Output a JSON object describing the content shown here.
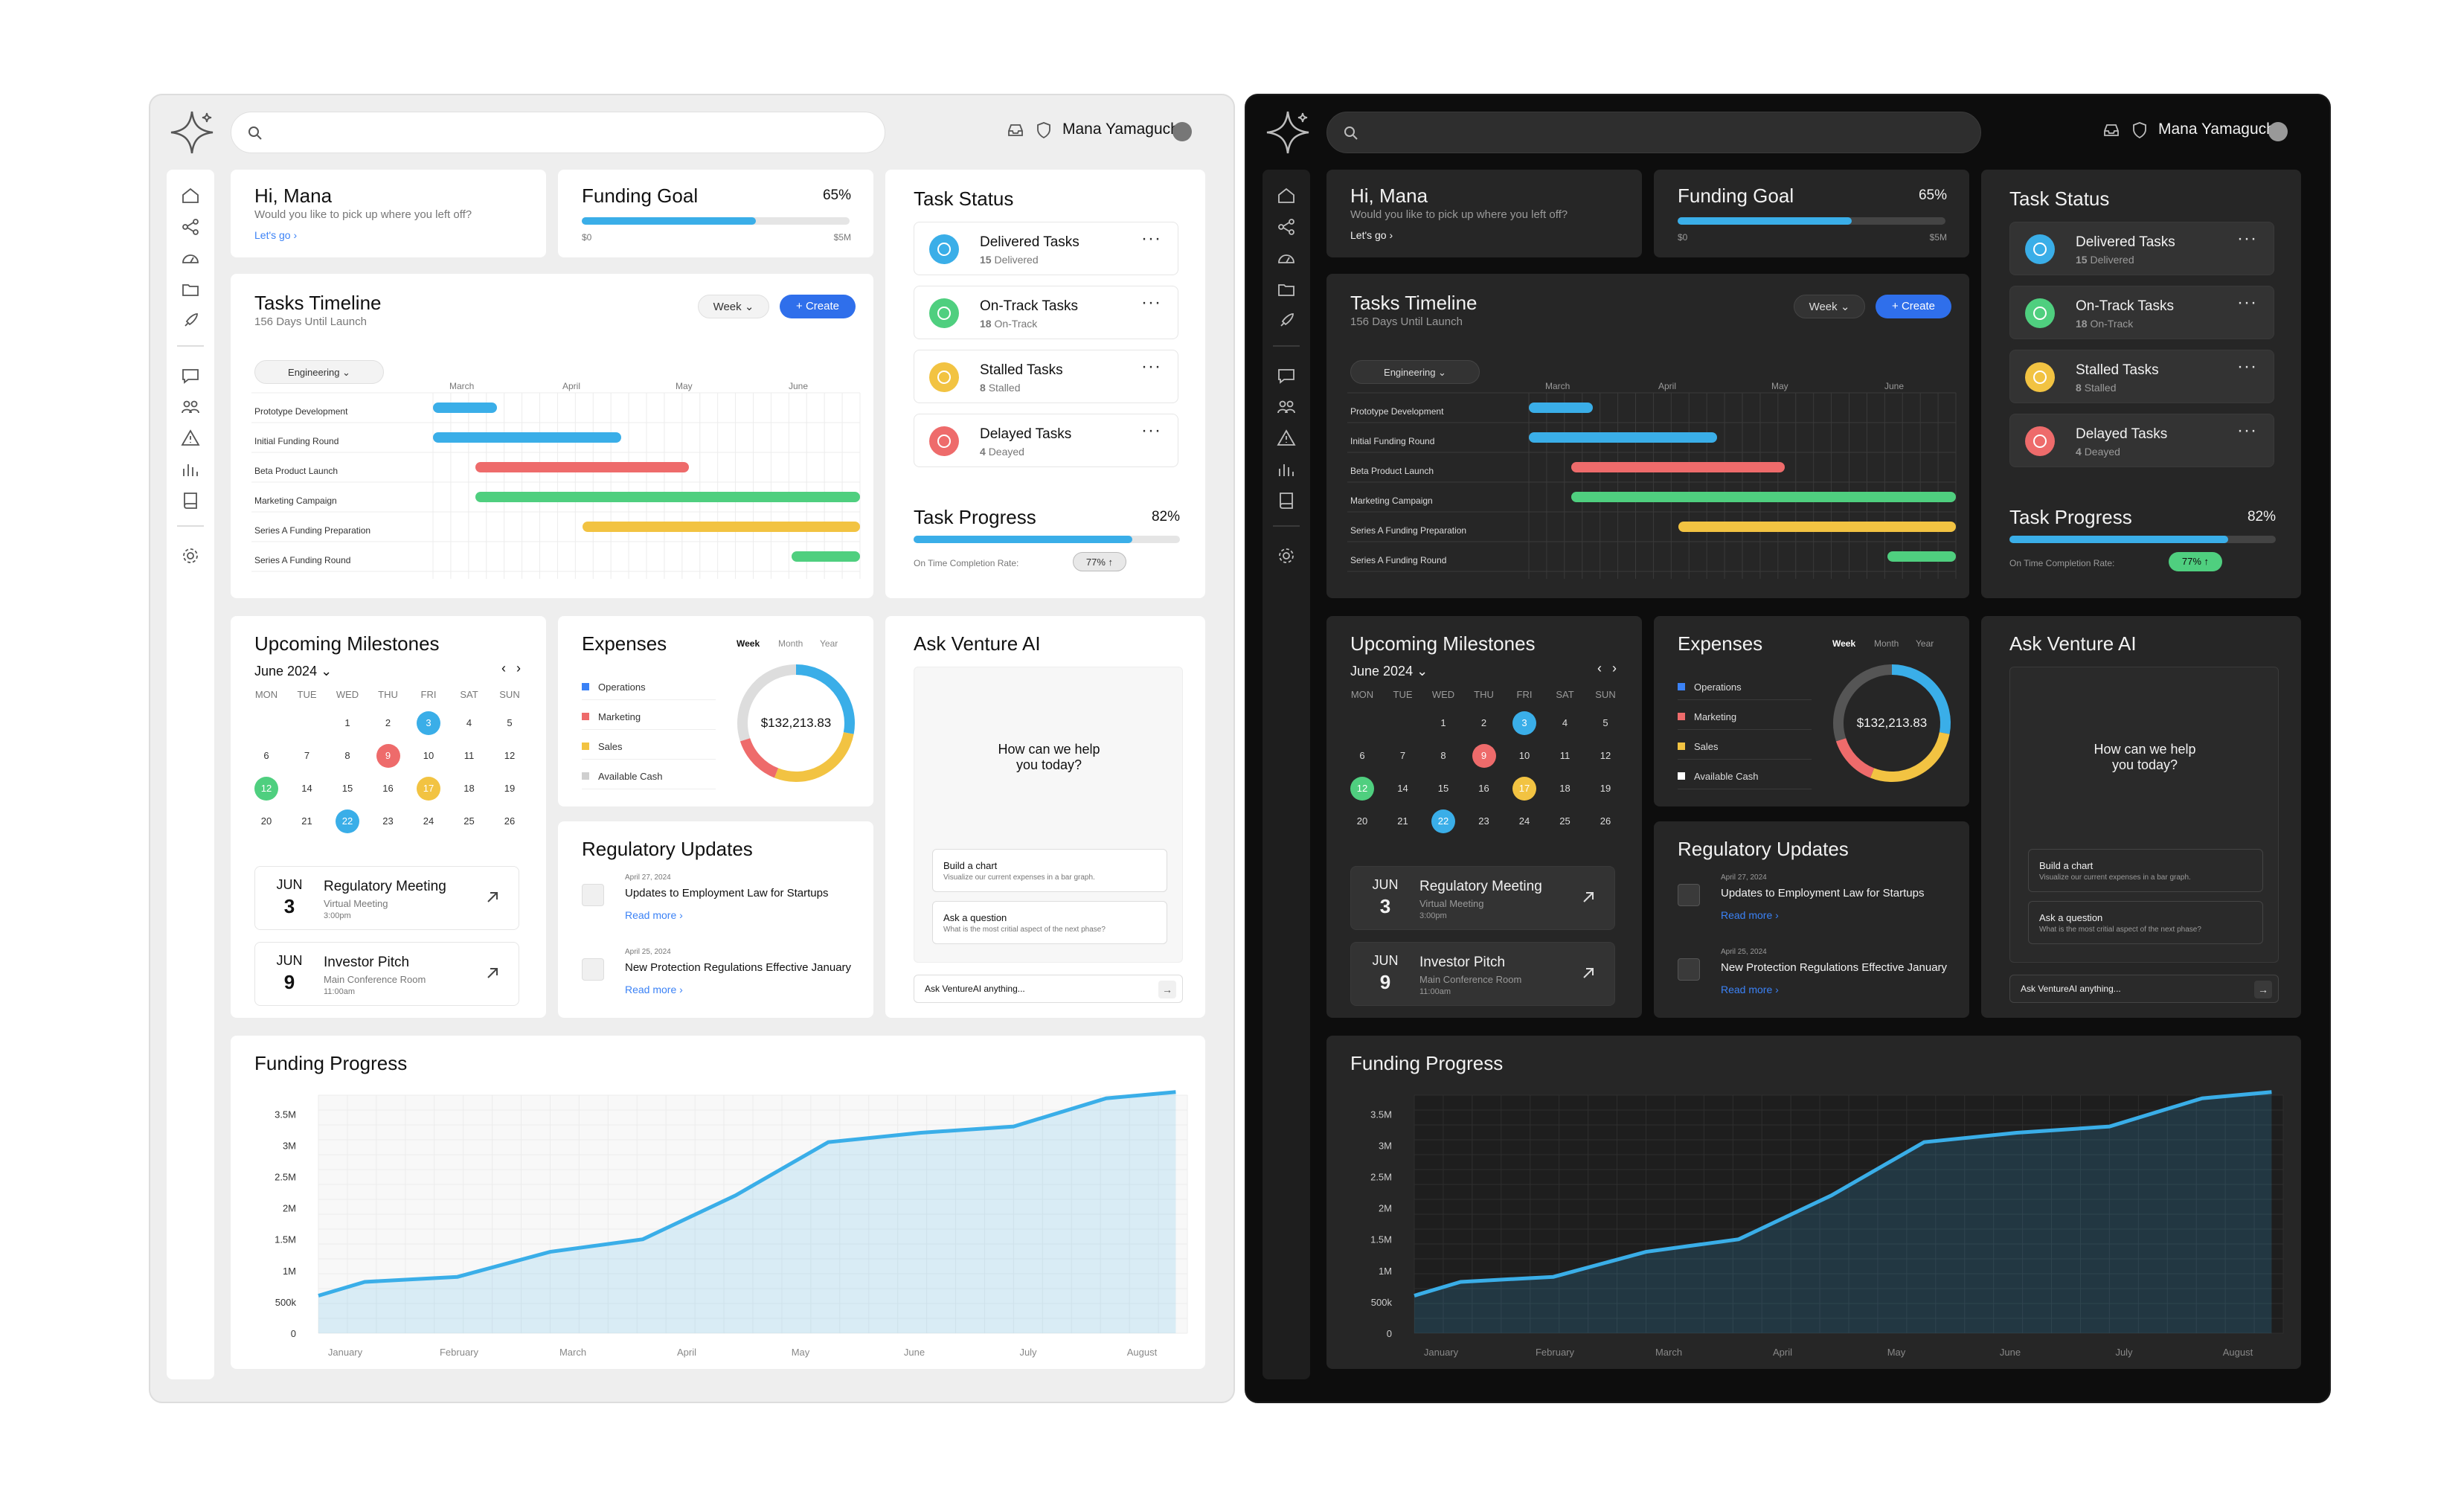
{
  "user": {
    "name": "Mana Yamaguchi"
  },
  "search": {
    "placeholder": ""
  },
  "colors": {
    "blue": "#3aaee8",
    "red": "#ee6b6b",
    "green": "#4fcf7f",
    "yellow": "#f2c342",
    "accent": "#2f6feb",
    "gray": "#cfcfcf"
  },
  "greeting": {
    "title": "Hi, Mana",
    "subtitle": "Would you like to pick up where you left off?",
    "link": "Let's go ›"
  },
  "funding_goal": {
    "title": "Funding Goal",
    "percent_label": "65%",
    "progress": 0.65,
    "min_label": "$0",
    "max_label": "$5M"
  },
  "task_status": {
    "title": "Task Status",
    "tasks": [
      {
        "title": "Delivered Tasks",
        "count": "15",
        "sub": "Delivered",
        "color": "#3aaee8",
        "icon": "check-circle-icon"
      },
      {
        "title": "On-Track Tasks",
        "count": "18",
        "sub": "On-Track",
        "color": "#4fcf7f",
        "icon": "signal-icon"
      },
      {
        "title": "Stalled Tasks",
        "count": "8",
        "sub": "Stalled",
        "color": "#f2c342",
        "icon": "pause-icon"
      },
      {
        "title": "Delayed Tasks",
        "count": "4",
        "sub": "Deayed",
        "color": "#ee6b6b",
        "icon": "warning-icon"
      }
    ],
    "menu": "···"
  },
  "task_progress": {
    "title": "Task Progress",
    "percent_label": "82%",
    "progress": 0.82,
    "rate_label": "On Time Completion Rate:",
    "rate_badge": "77% ↑"
  },
  "timeline": {
    "title": "Tasks Timeline",
    "subtitle": "156 Days Until Launch",
    "range_select": "Week",
    "create_button": "+ Create",
    "filter_select": "Engineering",
    "months": [
      "March",
      "April",
      "May",
      "June"
    ],
    "rows": [
      {
        "label": "Prototype Development",
        "start": 0.0,
        "end": 0.15,
        "color": "#3aaee8"
      },
      {
        "label": "Initial Funding Round",
        "start": 0.0,
        "end": 0.44,
        "color": "#3aaee8"
      },
      {
        "label": "Beta Product Launch",
        "start": 0.1,
        "end": 0.6,
        "color": "#ee6b6b"
      },
      {
        "label": "Marketing Campaign",
        "start": 0.1,
        "end": 1.0,
        "color": "#4fcf7f"
      },
      {
        "label": "Series A Funding Preparation",
        "start": 0.35,
        "end": 1.0,
        "color": "#f2c342"
      },
      {
        "label": "Series A Funding Round",
        "start": 0.84,
        "end": 1.0,
        "color": "#4fcf7f"
      }
    ]
  },
  "milestones": {
    "title": "Upcoming Milestones",
    "month": "June 2024",
    "weekdays": [
      "MON",
      "TUE",
      "WED",
      "THU",
      "FRI",
      "SAT",
      "SUN"
    ],
    "weeks": [
      [
        "",
        "",
        "1",
        "2",
        "3",
        "4",
        "5"
      ],
      [
        "6",
        "7",
        "8",
        "9",
        "10",
        "11",
        "12"
      ],
      [
        "12",
        "14",
        "15",
        "16",
        "17",
        "18",
        "19"
      ],
      [
        "20",
        "21",
        "22",
        "23",
        "24",
        "25",
        "26"
      ]
    ],
    "highlights": [
      {
        "week": 0,
        "day": 4,
        "color": "#3aaee8"
      },
      {
        "week": 1,
        "day": 3,
        "color": "#ee6b6b"
      },
      {
        "week": 2,
        "day": 0,
        "color": "#4fcf7f"
      },
      {
        "week": 2,
        "day": 4,
        "color": "#f2c342"
      },
      {
        "week": 3,
        "day": 2,
        "color": "#3aaee8"
      }
    ],
    "events": [
      {
        "month": "JUN",
        "day": "3",
        "title": "Regulatory Meeting",
        "sub": "Virtual Meeting",
        "time": "3:00pm"
      },
      {
        "month": "JUN",
        "day": "9",
        "title": "Investor Pitch",
        "sub": "Main Conference Room",
        "time": "11:00am"
      }
    ]
  },
  "expenses": {
    "title": "Expenses",
    "tabs": [
      "Week",
      "Month",
      "Year"
    ],
    "legend": [
      {
        "label": "Operations",
        "color": "#3b82f6"
      },
      {
        "label": "Marketing",
        "color": "#ee6b6b"
      },
      {
        "label": "Sales",
        "color": "#f2c342"
      },
      {
        "label": "Available Cash",
        "color": "#cfcfcf"
      }
    ],
    "total": "$132,213.83"
  },
  "regulatory": {
    "title": "Regulatory Updates",
    "items": [
      {
        "date": "April 27, 2024",
        "title": "Updates to Employment Law for Startups",
        "link": "Read more ›"
      },
      {
        "date": "April 25, 2024",
        "title": "New Protection Regulations Effective January",
        "link": "Read more ›"
      }
    ]
  },
  "ai": {
    "title": "Ask Venture AI",
    "prompt": "How can we help you today?",
    "suggestions": [
      {
        "title": "Build a chart",
        "sub": "Visualize our current expenses in a bar graph."
      },
      {
        "title": "Ask a question",
        "sub": "What is the most critial aspect of the next phase?"
      }
    ],
    "input_placeholder": "Ask VentureAI anything..."
  },
  "funding_progress": {
    "title": "Funding Progress"
  },
  "chart_data": {
    "type": "area",
    "title": "Funding Progress",
    "xlabel": "",
    "ylabel": "",
    "x_labels": [
      "January",
      "February",
      "March",
      "April",
      "May",
      "June",
      "July",
      "August"
    ],
    "y_ticks": [
      "0",
      "500k",
      "1M",
      "1.5M",
      "2M",
      "2.5M",
      "3M",
      "3.5M"
    ],
    "ylim": [
      0,
      3800000
    ],
    "x": [
      0,
      0.4,
      1.2,
      2.0,
      2.8,
      3.6,
      4.4,
      5.2,
      6.0,
      6.8,
      7.4
    ],
    "values": [
      600000,
      820000,
      900000,
      1300000,
      1500000,
      2200000,
      3050000,
      3200000,
      3300000,
      3750000,
      3850000
    ],
    "grid": true
  }
}
